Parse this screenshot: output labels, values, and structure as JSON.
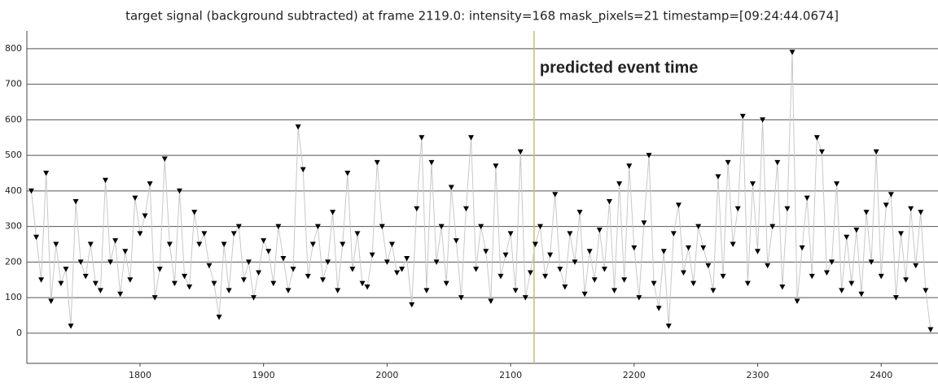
{
  "chart_data": {
    "type": "line",
    "title": "target signal (background subtracted) at frame 2119.0: intensity=168 mask_pixels=21 timestamp=[09:24:44.0674]",
    "annotation": "predicted event time",
    "event_x": 2119,
    "xlim": [
      1708.4,
      2446
    ],
    "ylim": [
      -85,
      850
    ],
    "xticks": [
      1800,
      1900,
      2000,
      2100,
      2200,
      2300,
      2400
    ],
    "yticks": [
      0,
      100,
      200,
      300,
      400,
      500,
      600,
      700,
      800
    ],
    "grid": true,
    "x": [
      1712,
      1716,
      1720,
      1724,
      1728,
      1732,
      1736,
      1740,
      1744,
      1748,
      1752,
      1756,
      1760,
      1764,
      1768,
      1772,
      1776,
      1780,
      1784,
      1788,
      1792,
      1796,
      1800,
      1804,
      1808,
      1812,
      1816,
      1820,
      1824,
      1828,
      1832,
      1836,
      1840,
      1844,
      1848,
      1852,
      1856,
      1860,
      1864,
      1868,
      1872,
      1876,
      1880,
      1884,
      1888,
      1892,
      1896,
      1900,
      1904,
      1908,
      1912,
      1916,
      1920,
      1924,
      1928,
      1932,
      1936,
      1940,
      1944,
      1948,
      1952,
      1956,
      1960,
      1964,
      1968,
      1972,
      1976,
      1980,
      1984,
      1988,
      1992,
      1996,
      2000,
      2004,
      2008,
      2012,
      2016,
      2020,
      2024,
      2028,
      2032,
      2036,
      2040,
      2044,
      2048,
      2052,
      2056,
      2060,
      2064,
      2068,
      2072,
      2076,
      2080,
      2084,
      2088,
      2092,
      2096,
      2100,
      2104,
      2108,
      2112,
      2116,
      2120,
      2124,
      2128,
      2132,
      2136,
      2140,
      2144,
      2148,
      2152,
      2156,
      2160,
      2164,
      2168,
      2172,
      2176,
      2180,
      2184,
      2188,
      2192,
      2196,
      2200,
      2204,
      2208,
      2212,
      2216,
      2220,
      2224,
      2228,
      2232,
      2236,
      2240,
      2244,
      2248,
      2252,
      2256,
      2260,
      2264,
      2268,
      2272,
      2276,
      2280,
      2284,
      2288,
      2292,
      2296,
      2300,
      2304,
      2308,
      2312,
      2316,
      2320,
      2324,
      2328,
      2332,
      2336,
      2340,
      2344,
      2348,
      2352,
      2356,
      2360,
      2364,
      2368,
      2372,
      2376,
      2380,
      2384,
      2388,
      2392,
      2396,
      2400,
      2404,
      2408,
      2412,
      2416,
      2420,
      2424,
      2428,
      2432,
      2436,
      2440
    ],
    "series": [
      {
        "color": "#000000",
        "line_color": "#c8c8c8",
        "values": [
          400,
          270,
          150,
          450,
          90,
          250,
          140,
          180,
          20,
          370,
          200,
          160,
          250,
          140,
          120,
          430,
          200,
          260,
          110,
          230,
          150,
          380,
          280,
          330,
          420,
          100,
          180,
          490,
          250,
          140,
          400,
          160,
          130,
          340,
          250,
          280,
          190,
          140,
          45,
          250,
          120,
          280,
          300,
          150,
          200,
          100,
          170,
          260,
          230,
          140,
          300,
          210,
          120,
          180,
          580,
          460,
          160,
          250,
          300,
          150,
          200,
          340,
          120,
          250,
          450,
          180,
          280,
          140,
          130,
          220,
          480,
          300,
          200,
          250,
          170,
          180,
          210,
          80,
          350,
          550,
          120,
          480,
          200,
          300,
          140,
          410,
          260,
          100,
          350,
          550,
          180,
          300,
          230,
          90,
          470,
          160,
          220,
          280,
          120,
          510,
          100,
          170,
          250,
          300,
          160,
          220,
          390,
          180,
          130,
          280,
          200,
          340,
          110,
          230,
          150,
          290,
          180,
          370,
          120,
          420,
          150,
          470,
          240,
          100,
          310,
          500,
          140,
          70,
          230,
          20,
          280,
          360,
          170,
          240,
          140,
          300,
          240,
          190,
          120,
          440,
          160,
          480,
          250,
          350,
          610,
          140,
          420,
          230,
          600,
          190,
          300,
          480,
          130,
          350,
          790,
          90,
          240,
          380,
          160,
          550,
          510,
          170,
          200,
          420,
          120,
          270,
          140,
          290,
          110,
          340,
          200,
          510,
          160,
          360,
          390,
          100,
          280,
          150,
          350,
          190,
          340,
          120,
          10
        ]
      }
    ]
  }
}
